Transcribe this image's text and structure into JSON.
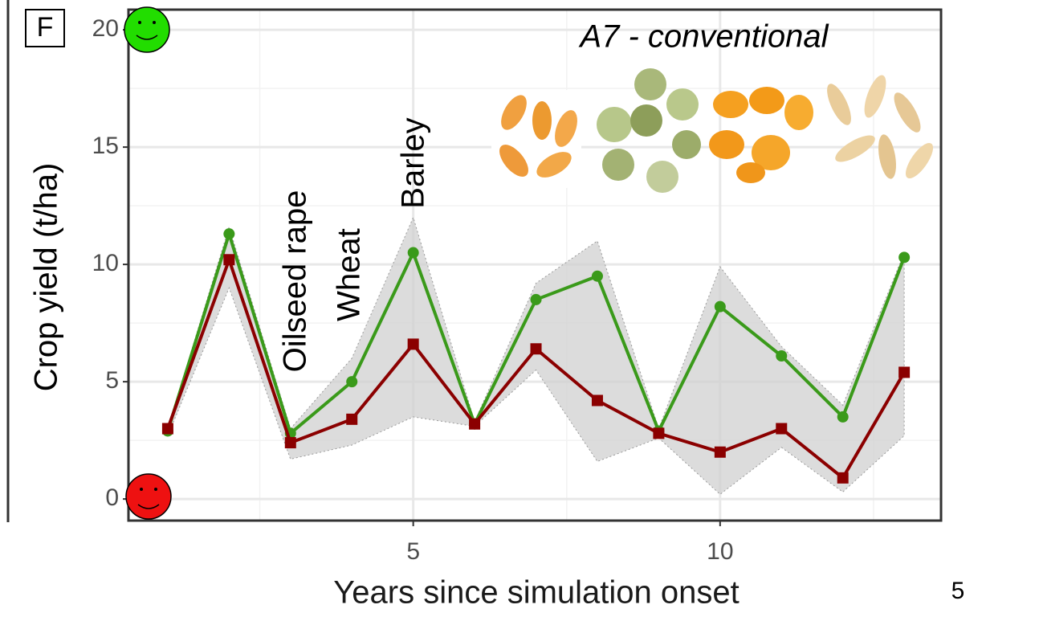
{
  "chart_data": {
    "type": "line",
    "panel_label": "F",
    "subtitle": "A7 - conventional",
    "x_label": "Years since simulation onset",
    "y_label": "Crop yield (t/ha)",
    "page_number": "5",
    "annotations": [
      "Oilseed rape",
      "Wheat",
      "Barley"
    ],
    "x": [
      1,
      2,
      3,
      4,
      5,
      6,
      7,
      8,
      9,
      10,
      11,
      12,
      13
    ],
    "series": [
      {
        "color": "#3a9a1a",
        "marker": "circle",
        "values": [
          2.9,
          11.3,
          2.8,
          5.0,
          10.5,
          3.2,
          8.5,
          9.5,
          2.9,
          8.2,
          6.1,
          3.5,
          10.3
        ]
      },
      {
        "color": "#8b0000",
        "marker": "square",
        "values": [
          3.0,
          10.2,
          2.4,
          3.4,
          6.6,
          3.2,
          6.4,
          4.2,
          2.8,
          2.0,
          3.0,
          0.9,
          5.4
        ]
      }
    ],
    "ribbon": {
      "color": "#d0d0d0",
      "upper": [
        3.0,
        11.6,
        3.0,
        6.0,
        12.0,
        3.3,
        9.2,
        11.0,
        3.0,
        9.9,
        6.5,
        4.0,
        10.5
      ],
      "lower": [
        2.7,
        9.0,
        1.7,
        2.3,
        3.5,
        3.1,
        5.5,
        1.6,
        2.6,
        0.2,
        2.2,
        0.3,
        2.7
      ]
    },
    "xlim": [
      0.36,
      13.6
    ],
    "ylim": [
      -0.92,
      20.86
    ],
    "xticks": [
      5,
      10
    ],
    "yticks": [
      0,
      5,
      10,
      15,
      20
    ],
    "x_minor_grid": [
      2.5,
      7.5,
      12.5
    ],
    "y_minor_grid": [
      2.5,
      7.5,
      12.5,
      17.5
    ],
    "grid": true
  }
}
